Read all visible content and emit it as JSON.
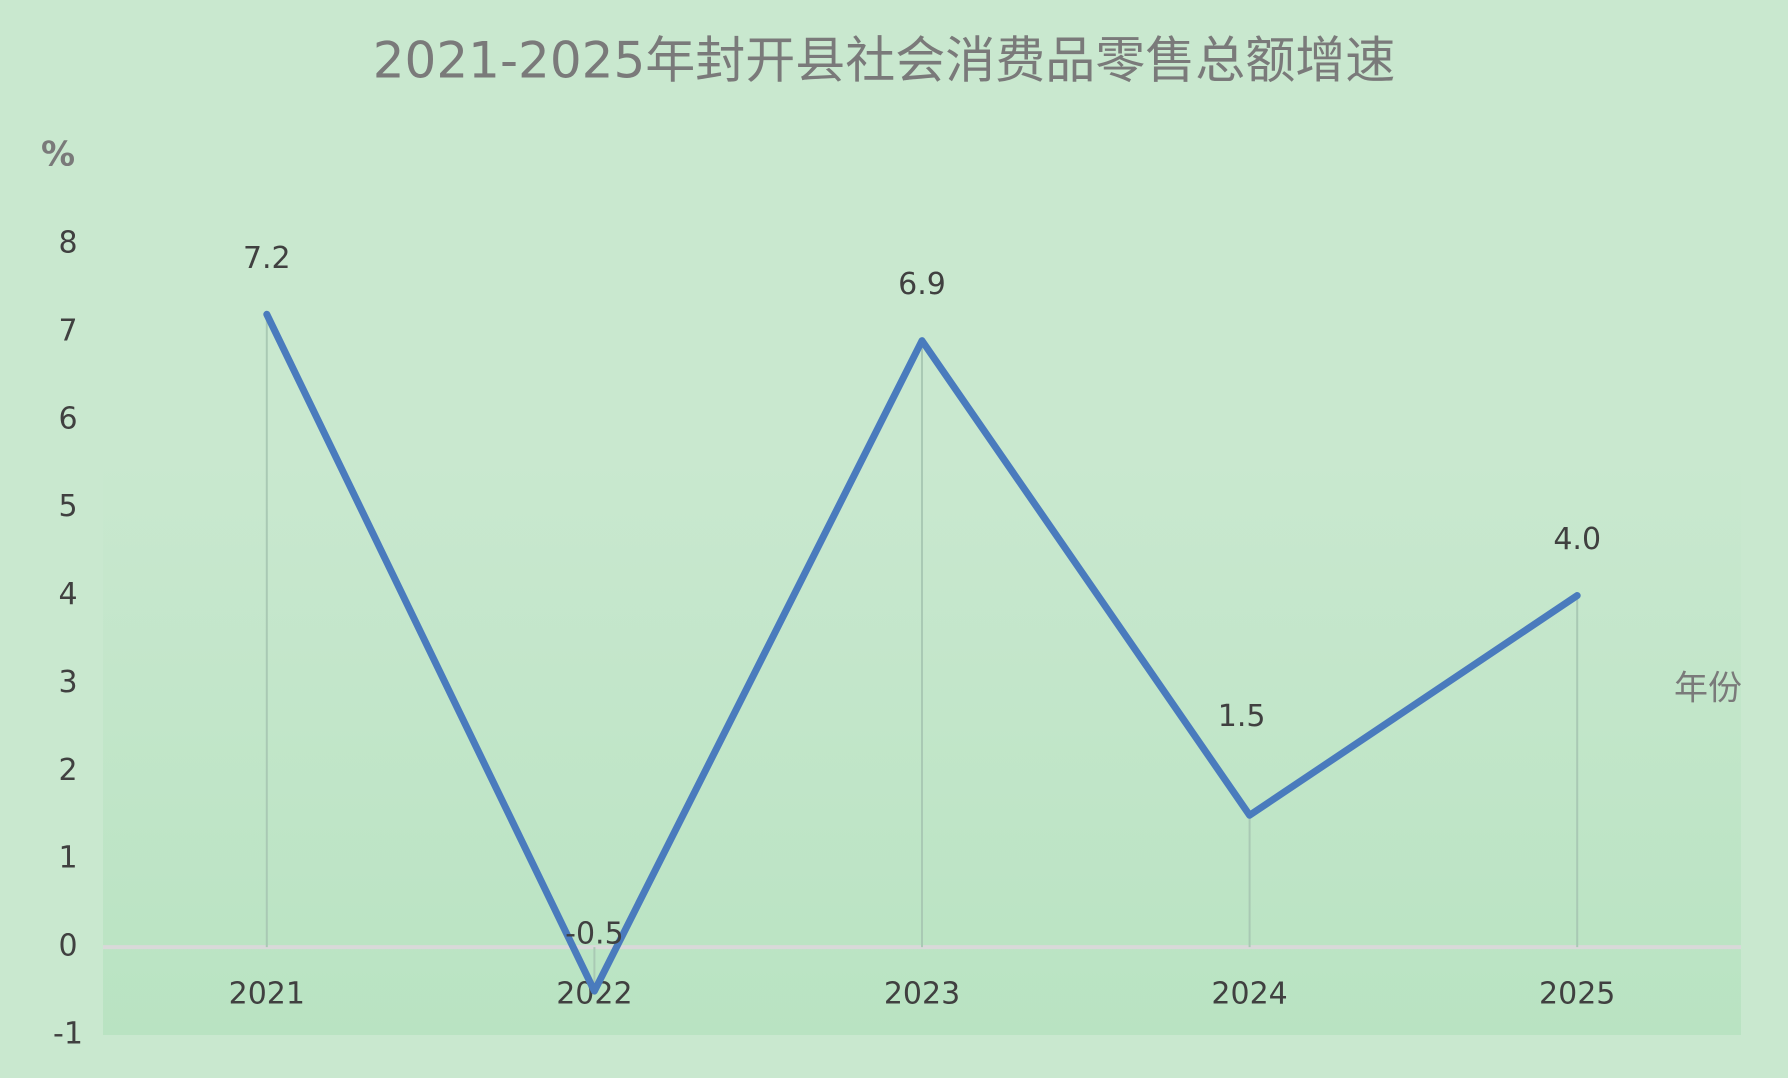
{
  "chart_data": {
    "type": "line",
    "title": "2021-2025年封开县社会消费品零售总额增速",
    "y_label": "%",
    "x_label": "年份",
    "categories": [
      "2021",
      "2022",
      "2023",
      "2024",
      "2025"
    ],
    "series": [
      {
        "name": "增速",
        "color": "#4a7bbd",
        "values": [
          7.2,
          -0.5,
          6.9,
          1.5,
          4.0
        ],
        "value_labels": [
          "7.2",
          "-0.5",
          "6.9",
          "1.5",
          "4.0"
        ]
      }
    ],
    "ylim": [
      -1,
      8
    ],
    "yticks": [
      -1,
      0,
      1,
      2,
      3,
      4,
      5,
      6,
      7,
      8
    ],
    "drop_lines": true
  }
}
